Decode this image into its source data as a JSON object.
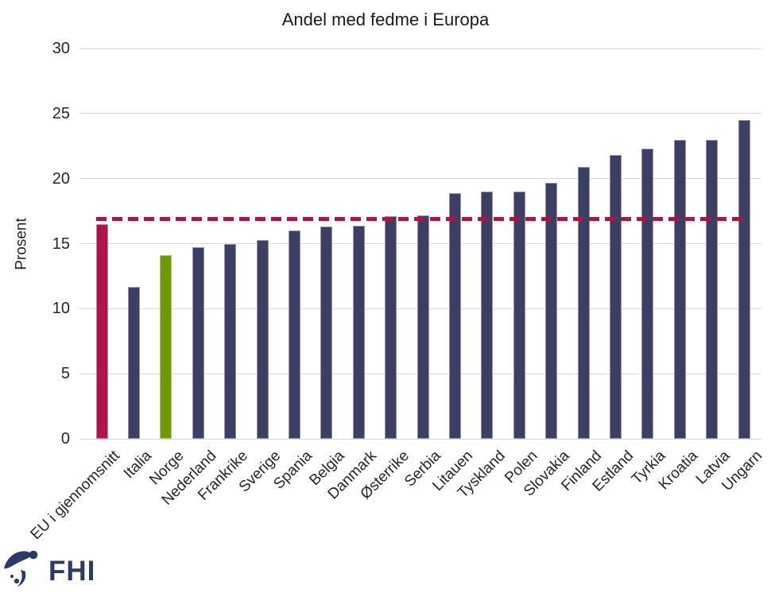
{
  "chart_data": {
    "type": "bar",
    "title": "Andel med fedme i Europa",
    "ylabel": "Prosent",
    "ylim": [
      0,
      30
    ],
    "yticks": [
      0,
      5,
      10,
      15,
      20,
      25,
      30
    ],
    "grid": true,
    "legend": null,
    "categories": [
      "EU i gjennomsnitt",
      "Italia",
      "Norge",
      "Nederland",
      "Frankrike",
      "Sverige",
      "Spania",
      "Belgia",
      "Danmark",
      "Østerrike",
      "Serbia",
      "Litauen",
      "Tyskland",
      "Polen",
      "Slovakia",
      "Finland",
      "Estland",
      "Tyrkia",
      "Kroatia",
      "Latvia",
      "Ungarn"
    ],
    "values": [
      16.5,
      11.7,
      14.1,
      14.7,
      15.0,
      15.3,
      16.0,
      16.3,
      16.4,
      17.1,
      17.2,
      18.9,
      19.0,
      19.0,
      19.7,
      20.9,
      21.8,
      22.3,
      23.0,
      23.0,
      24.5
    ],
    "bar_color_default": "#3a3f63",
    "bar_color_overrides": {
      "0": "#b01349",
      "2": "#6f9904"
    },
    "highlight_meaning": {
      "0": "eu-average-bar",
      "2": "norway-bar"
    },
    "reference_line": {
      "value": 16.9,
      "style": "dashed",
      "color": "#c00b3f"
    },
    "gridline_color": "#d9d9d9"
  },
  "logo": {
    "text": "FHI",
    "color": "#2b3a69"
  }
}
